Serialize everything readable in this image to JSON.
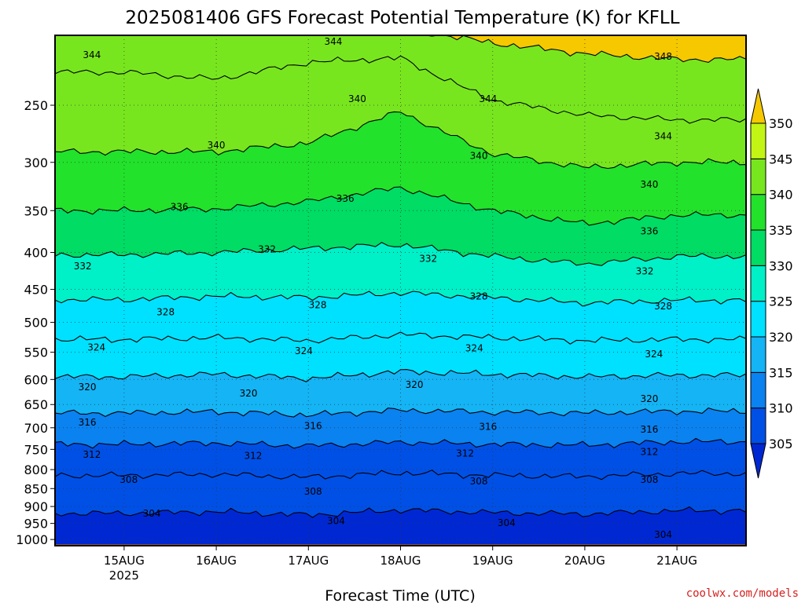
{
  "chart_data": {
    "type": "heatmap",
    "title": "2025081406 GFS Forecast Potential Temperature (K) for KFLL",
    "xlabel": "Forecast Time (UTC)",
    "ylabel": "",
    "credit": "coolwx.com/models",
    "y_scale": "log",
    "y_inverted": true,
    "ylim": [
      1020,
      200
    ],
    "y_ticks": [
      250,
      300,
      350,
      400,
      450,
      500,
      550,
      600,
      650,
      700,
      750,
      800,
      850,
      900,
      950,
      1000
    ],
    "x_ticks": [
      {
        "label": "15AUG",
        "sub": "2025",
        "day": 1
      },
      {
        "label": "16AUG",
        "sub": "",
        "day": 2
      },
      {
        "label": "17AUG",
        "sub": "",
        "day": 3
      },
      {
        "label": "18AUG",
        "sub": "",
        "day": 4
      },
      {
        "label": "19AUG",
        "sub": "",
        "day": 5
      },
      {
        "label": "20AUG",
        "sub": "",
        "day": 6
      },
      {
        "label": "21AUG",
        "sub": "",
        "day": 7
      }
    ],
    "xlim_days": [
      0.25,
      7.75
    ],
    "colorbar": {
      "levels": [
        305,
        310,
        315,
        320,
        325,
        330,
        335,
        340,
        345,
        350
      ],
      "colors": [
        "#0050e6",
        "#0a82f0",
        "#14b4f5",
        "#00e1ff",
        "#00f0c8",
        "#00dc64",
        "#22e22b",
        "#78e61e",
        "#c3f514",
        "#ffff00"
      ],
      "under_color": "#0028d2",
      "over_color": "#f5c800",
      "ground_color": "#a0522d"
    },
    "isentropes": [
      {
        "theta": 304,
        "pressure": [
          920,
          915,
          925,
          910,
          918,
          922,
          912
        ]
      },
      {
        "theta": 308,
        "pressure": [
          815,
          812,
          820,
          808,
          815,
          818,
          810
        ]
      },
      {
        "theta": 312,
        "pressure": [
          738,
          735,
          742,
          733,
          738,
          740,
          732
        ]
      },
      {
        "theta": 316,
        "pressure": [
          668,
          665,
          672,
          662,
          666,
          668,
          664
        ]
      },
      {
        "theta": 320,
        "pressure": [
          595,
          590,
          598,
          585,
          590,
          595,
          592
        ]
      },
      {
        "theta": 324,
        "pressure": [
          528,
          525,
          530,
          520,
          525,
          530,
          528
        ]
      },
      {
        "theta": 328,
        "pressure": [
          465,
          460,
          462,
          455,
          462,
          470,
          466
        ]
      },
      {
        "theta": 332,
        "pressure": [
          403,
          400,
          395,
          390,
          405,
          415,
          405
        ]
      },
      {
        "theta": 336,
        "pressure": [
          350,
          348,
          340,
          325,
          350,
          365,
          355
        ]
      },
      {
        "theta": 340,
        "pressure": [
          290,
          290,
          282,
          255,
          292,
          305,
          300
        ]
      },
      {
        "theta": 344,
        "pressure": [
          225,
          230,
          218,
          215,
          246,
          258,
          262
        ]
      },
      {
        "theta": 348,
        "pressure": [
          195,
          195,
          195,
          195,
          205,
          212,
          216
        ]
      }
    ],
    "contour_labels": [
      {
        "text": "344",
        "day": 0.65,
        "p": 213
      },
      {
        "text": "344",
        "day": 3.27,
        "p": 204
      },
      {
        "text": "348",
        "day": 6.85,
        "p": 214
      },
      {
        "text": "340",
        "day": 3.53,
        "p": 245
      },
      {
        "text": "344",
        "day": 4.95,
        "p": 245
      },
      {
        "text": "344",
        "day": 6.85,
        "p": 276
      },
      {
        "text": "340",
        "day": 2.0,
        "p": 284
      },
      {
        "text": "340",
        "day": 4.85,
        "p": 294
      },
      {
        "text": "340",
        "day": 6.7,
        "p": 322
      },
      {
        "text": "336",
        "day": 1.6,
        "p": 346
      },
      {
        "text": "336",
        "day": 3.4,
        "p": 337
      },
      {
        "text": "336",
        "day": 6.7,
        "p": 374
      },
      {
        "text": "332",
        "day": 0.55,
        "p": 418
      },
      {
        "text": "332",
        "day": 2.55,
        "p": 396
      },
      {
        "text": "332",
        "day": 4.3,
        "p": 408
      },
      {
        "text": "332",
        "day": 6.65,
        "p": 425
      },
      {
        "text": "328",
        "day": 1.45,
        "p": 484
      },
      {
        "text": "328",
        "day": 3.1,
        "p": 473
      },
      {
        "text": "328",
        "day": 4.85,
        "p": 460
      },
      {
        "text": "328",
        "day": 6.85,
        "p": 475
      },
      {
        "text": "324",
        "day": 0.7,
        "p": 542
      },
      {
        "text": "324",
        "day": 2.95,
        "p": 548
      },
      {
        "text": "324",
        "day": 4.8,
        "p": 543
      },
      {
        "text": "324",
        "day": 6.75,
        "p": 553
      },
      {
        "text": "320",
        "day": 0.6,
        "p": 615
      },
      {
        "text": "320",
        "day": 2.35,
        "p": 627
      },
      {
        "text": "320",
        "day": 4.15,
        "p": 610
      },
      {
        "text": "320",
        "day": 6.7,
        "p": 638
      },
      {
        "text": "316",
        "day": 0.6,
        "p": 688
      },
      {
        "text": "316",
        "day": 3.05,
        "p": 696
      },
      {
        "text": "316",
        "day": 4.95,
        "p": 698
      },
      {
        "text": "316",
        "day": 6.7,
        "p": 704
      },
      {
        "text": "312",
        "day": 0.65,
        "p": 763
      },
      {
        "text": "312",
        "day": 2.4,
        "p": 766
      },
      {
        "text": "312",
        "day": 4.7,
        "p": 760
      },
      {
        "text": "312",
        "day": 6.7,
        "p": 756
      },
      {
        "text": "308",
        "day": 1.05,
        "p": 826
      },
      {
        "text": "308",
        "day": 3.05,
        "p": 858
      },
      {
        "text": "308",
        "day": 4.85,
        "p": 830
      },
      {
        "text": "308",
        "day": 6.7,
        "p": 826
      },
      {
        "text": "304",
        "day": 1.3,
        "p": 920
      },
      {
        "text": "304",
        "day": 3.3,
        "p": 943
      },
      {
        "text": "304",
        "day": 5.15,
        "p": 948
      },
      {
        "text": "304",
        "day": 6.85,
        "p": 985
      }
    ]
  }
}
